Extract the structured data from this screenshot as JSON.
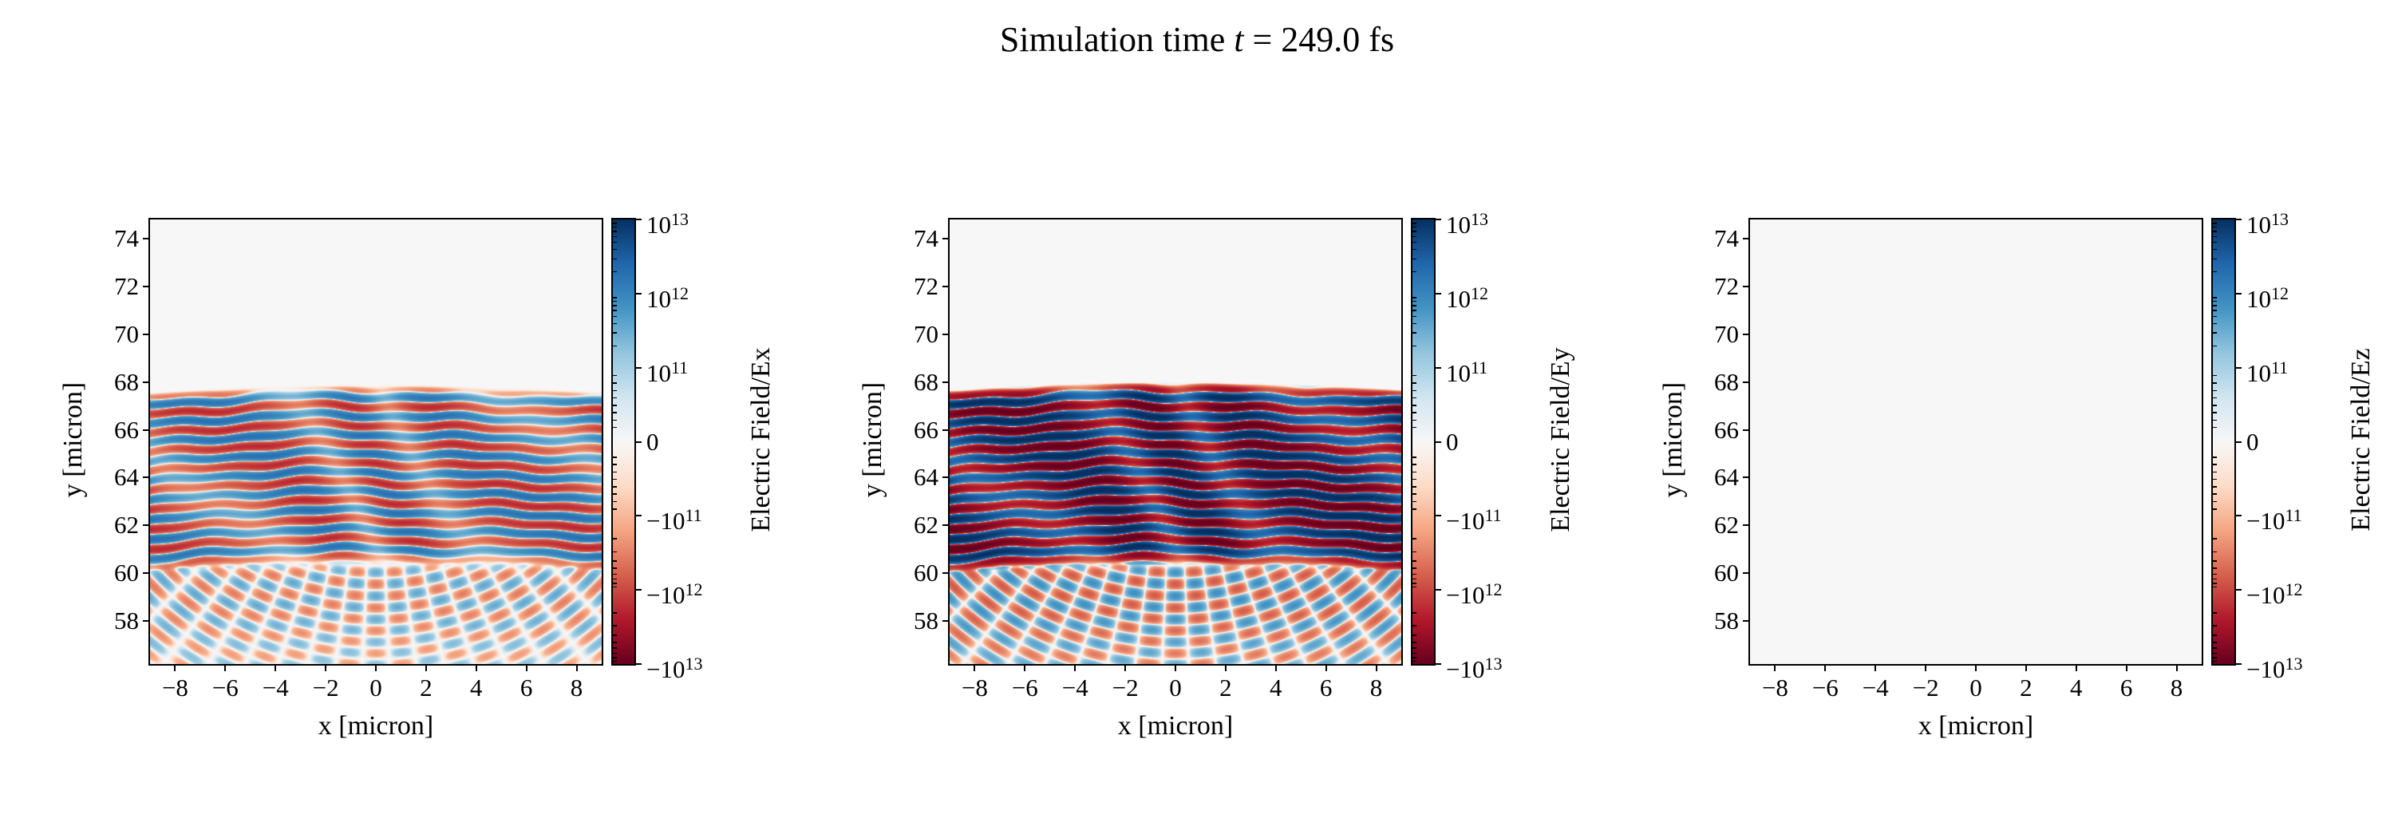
{
  "figure": {
    "title": {
      "prefix": "Simulation time ",
      "variable": "t",
      "suffix": " = 249.0 fs"
    },
    "background": "#ffffff",
    "text_color": "#000000"
  },
  "colormap": {
    "name": "RdBu",
    "stops_min_to_max": [
      "#67001f",
      "#b2182b",
      "#d6604d",
      "#f4a582",
      "#fddbc7",
      "#f7f7f7",
      "#d1e5f0",
      "#92c5de",
      "#4393c3",
      "#2166ac",
      "#053061"
    ]
  },
  "chart_data": [
    {
      "type": "heatmap",
      "field_component": "Ex",
      "xlabel": "x [micron]",
      "ylabel": "y [micron]",
      "xlim": [
        -9,
        9
      ],
      "ylim": [
        56.2,
        74.8
      ],
      "xticks": [
        -8,
        -6,
        -4,
        -2,
        0,
        2,
        4,
        6,
        8
      ],
      "yticks": [
        58,
        60,
        62,
        64,
        66,
        68,
        70,
        72,
        74
      ],
      "grid": false,
      "colorbar": {
        "label": "Electric Field/Ex",
        "scale": "symlog",
        "linthresh": 100000000000.0,
        "vmin": -10000000000000.0,
        "vmax": 10000000000000.0,
        "major_ticks": [
          10000000000000.0,
          1000000000000.0,
          100000000000.0,
          0,
          -100000000000.0,
          -1000000000000.0,
          -10000000000000.0
        ]
      },
      "field_pattern": {
        "description": "medium-intensity horizontal red/blue standing-wave stripes between y~60.3 and y~67.9 micron with wavy x-modulation; weak crossing interference fringes below y~60.5; near-zero field above y~68",
        "band_y": [
          60.3,
          67.9
        ],
        "stripe_wavelength_um": 0.8,
        "peak_amplitude": 1800000000000.0,
        "lower_fringe_amplitude": 350000000000.0,
        "lower_fringe_ymax": 60.6,
        "edge_sag": 0.004
      }
    },
    {
      "type": "heatmap",
      "field_component": "Ey",
      "xlabel": "x [micron]",
      "ylabel": "y [micron]",
      "xlim": [
        -9,
        9
      ],
      "ylim": [
        56.2,
        74.8
      ],
      "xticks": [
        -8,
        -6,
        -4,
        -2,
        0,
        2,
        4,
        6,
        8
      ],
      "yticks": [
        58,
        60,
        62,
        64,
        66,
        68,
        70,
        72,
        74
      ],
      "grid": false,
      "colorbar": {
        "label": "Electric Field/Ey",
        "scale": "symlog",
        "linthresh": 100000000000.0,
        "vmin": -10000000000000.0,
        "vmax": 10000000000000.0,
        "major_ticks": [
          10000000000000.0,
          1000000000000.0,
          100000000000.0,
          0,
          -100000000000.0,
          -1000000000000.0,
          -10000000000000.0
        ]
      },
      "field_pattern": {
        "description": "strong saturated dark-blue/dark-red horizontal standing-wave stripes between y~60.3 and y~68 micron; stronger crossing interference fringes below y~60.5; near-zero field above y~68",
        "band_y": [
          60.3,
          68.0
        ],
        "stripe_wavelength_um": 0.8,
        "peak_amplitude": 12000000000000.0,
        "lower_fringe_amplitude": 700000000000.0,
        "lower_fringe_ymax": 60.6,
        "edge_sag": 0.004
      }
    },
    {
      "type": "heatmap",
      "field_component": "Ez",
      "xlabel": "x [micron]",
      "ylabel": "y [micron]",
      "xlim": [
        -9,
        9
      ],
      "ylim": [
        56.2,
        74.8
      ],
      "xticks": [
        -8,
        -6,
        -4,
        -2,
        0,
        2,
        4,
        6,
        8
      ],
      "yticks": [
        58,
        60,
        62,
        64,
        66,
        68,
        70,
        72,
        74
      ],
      "grid": false,
      "colorbar": {
        "label": "Electric Field/Ez",
        "scale": "symlog",
        "linthresh": 100000000000.0,
        "vmin": -10000000000000.0,
        "vmax": 10000000000000.0,
        "major_ticks": [
          10000000000000.0,
          1000000000000.0,
          100000000000.0,
          0,
          -100000000000.0,
          -1000000000000.0,
          -10000000000000.0
        ]
      },
      "field_pattern": {
        "description": "field is zero everywhere (uniform near-white background)",
        "band_y": [
          60.3,
          68.0
        ],
        "stripe_wavelength_um": 0.8,
        "peak_amplitude": 0,
        "lower_fringe_amplitude": 0,
        "lower_fringe_ymax": 60.6,
        "edge_sag": 0.004
      }
    }
  ]
}
